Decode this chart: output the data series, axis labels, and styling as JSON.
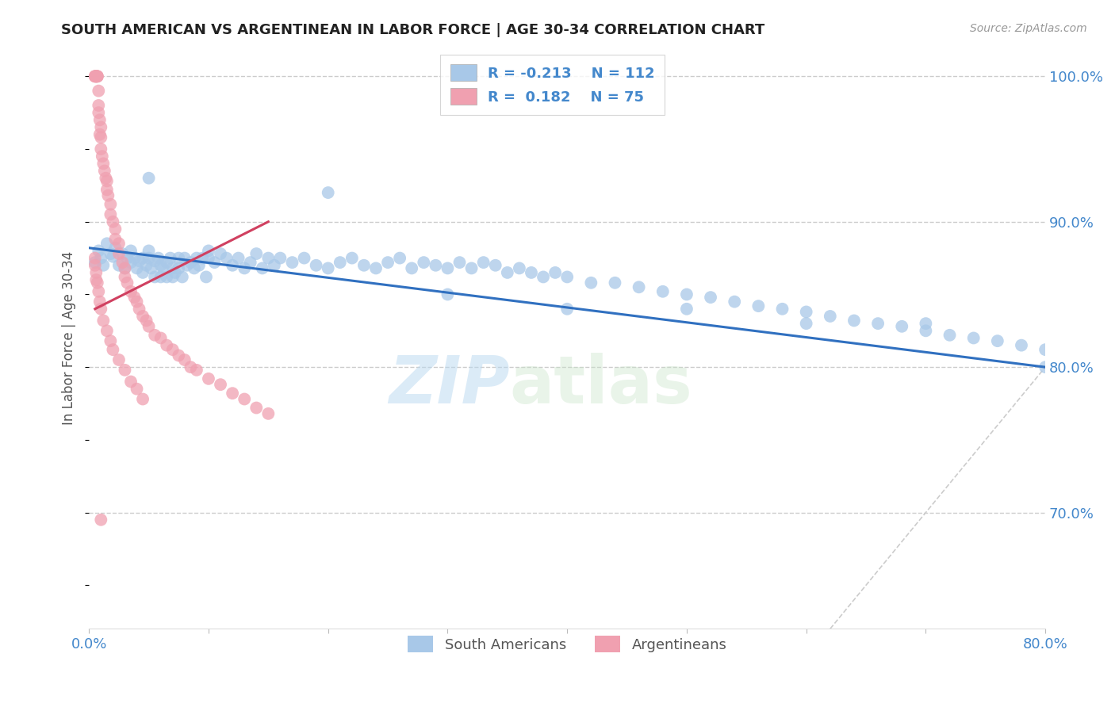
{
  "title": "SOUTH AMERICAN VS ARGENTINEAN IN LABOR FORCE | AGE 30-34 CORRELATION CHART",
  "source": "Source: ZipAtlas.com",
  "ylabel": "In Labor Force | Age 30-34",
  "xlim": [
    0.0,
    0.8
  ],
  "ylim": [
    0.62,
    1.02
  ],
  "xticks": [
    0.0,
    0.1,
    0.2,
    0.3,
    0.4,
    0.5,
    0.6,
    0.7,
    0.8
  ],
  "yticks_right": [
    0.7,
    0.8,
    0.9,
    1.0
  ],
  "yticklabels_right": [
    "70.0%",
    "80.0%",
    "90.0%",
    "100.0%"
  ],
  "blue_color": "#a8c8e8",
  "pink_color": "#f0a0b0",
  "blue_line_color": "#3070c0",
  "pink_line_color": "#d04060",
  "diagonal_color": "#cccccc",
  "legend_R_blue": "-0.213",
  "legend_N_blue": "112",
  "legend_R_pink": "0.182",
  "legend_N_pink": "75",
  "legend_label_blue": "South Americans",
  "legend_label_pink": "Argentineans",
  "watermark_zip": "ZIP",
  "watermark_atlas": "atlas",
  "blue_line_x0": 0.0,
  "blue_line_y0": 0.882,
  "blue_line_x1": 0.8,
  "blue_line_y1": 0.8,
  "pink_line_x0": 0.005,
  "pink_line_y0": 0.84,
  "pink_line_x1": 0.15,
  "pink_line_y1": 0.9,
  "blue_scatter_x": [
    0.005,
    0.008,
    0.01,
    0.012,
    0.015,
    0.018,
    0.02,
    0.022,
    0.025,
    0.028,
    0.03,
    0.032,
    0.035,
    0.035,
    0.038,
    0.04,
    0.042,
    0.045,
    0.045,
    0.048,
    0.05,
    0.05,
    0.052,
    0.055,
    0.055,
    0.058,
    0.06,
    0.06,
    0.062,
    0.065,
    0.065,
    0.068,
    0.07,
    0.07,
    0.072,
    0.075,
    0.075,
    0.078,
    0.08,
    0.082,
    0.085,
    0.088,
    0.09,
    0.092,
    0.095,
    0.098,
    0.1,
    0.105,
    0.11,
    0.115,
    0.12,
    0.125,
    0.13,
    0.135,
    0.14,
    0.145,
    0.15,
    0.155,
    0.16,
    0.17,
    0.18,
    0.19,
    0.2,
    0.21,
    0.22,
    0.23,
    0.24,
    0.25,
    0.26,
    0.27,
    0.28,
    0.29,
    0.3,
    0.31,
    0.32,
    0.33,
    0.34,
    0.35,
    0.36,
    0.37,
    0.38,
    0.39,
    0.4,
    0.42,
    0.44,
    0.46,
    0.48,
    0.5,
    0.52,
    0.54,
    0.56,
    0.58,
    0.6,
    0.62,
    0.64,
    0.66,
    0.68,
    0.7,
    0.72,
    0.74,
    0.76,
    0.78,
    0.8,
    0.05,
    0.1,
    0.2,
    0.3,
    0.4,
    0.5,
    0.6,
    0.7,
    0.8
  ],
  "blue_scatter_y": [
    0.872,
    0.88,
    0.875,
    0.87,
    0.885,
    0.878,
    0.876,
    0.882,
    0.87,
    0.878,
    0.868,
    0.875,
    0.88,
    0.872,
    0.875,
    0.868,
    0.873,
    0.875,
    0.865,
    0.87,
    0.88,
    0.875,
    0.868,
    0.873,
    0.862,
    0.875,
    0.87,
    0.862,
    0.868,
    0.872,
    0.862,
    0.875,
    0.868,
    0.862,
    0.865,
    0.875,
    0.868,
    0.862,
    0.875,
    0.87,
    0.872,
    0.868,
    0.875,
    0.87,
    0.875,
    0.862,
    0.875,
    0.872,
    0.878,
    0.875,
    0.87,
    0.875,
    0.868,
    0.872,
    0.878,
    0.868,
    0.875,
    0.87,
    0.875,
    0.872,
    0.875,
    0.87,
    0.868,
    0.872,
    0.875,
    0.87,
    0.868,
    0.872,
    0.875,
    0.868,
    0.872,
    0.87,
    0.868,
    0.872,
    0.868,
    0.872,
    0.87,
    0.865,
    0.868,
    0.865,
    0.862,
    0.865,
    0.862,
    0.858,
    0.858,
    0.855,
    0.852,
    0.85,
    0.848,
    0.845,
    0.842,
    0.84,
    0.838,
    0.835,
    0.832,
    0.83,
    0.828,
    0.825,
    0.822,
    0.82,
    0.818,
    0.815,
    0.812,
    0.93,
    0.88,
    0.92,
    0.85,
    0.84,
    0.84,
    0.83,
    0.83,
    0.8
  ],
  "pink_scatter_x": [
    0.005,
    0.005,
    0.005,
    0.006,
    0.006,
    0.006,
    0.006,
    0.007,
    0.007,
    0.007,
    0.008,
    0.008,
    0.008,
    0.009,
    0.009,
    0.01,
    0.01,
    0.01,
    0.011,
    0.012,
    0.013,
    0.014,
    0.015,
    0.015,
    0.016,
    0.018,
    0.018,
    0.02,
    0.022,
    0.022,
    0.025,
    0.025,
    0.028,
    0.03,
    0.03,
    0.032,
    0.035,
    0.038,
    0.04,
    0.042,
    0.045,
    0.048,
    0.05,
    0.055,
    0.06,
    0.065,
    0.07,
    0.075,
    0.08,
    0.085,
    0.09,
    0.1,
    0.11,
    0.12,
    0.13,
    0.14,
    0.15,
    0.005,
    0.005,
    0.006,
    0.006,
    0.007,
    0.008,
    0.009,
    0.01,
    0.012,
    0.015,
    0.018,
    0.02,
    0.025,
    0.03,
    0.035,
    0.04,
    0.045,
    0.01
  ],
  "pink_scatter_y": [
    1.0,
    1.0,
    1.0,
    1.0,
    1.0,
    1.0,
    1.0,
    1.0,
    1.0,
    1.0,
    0.99,
    0.98,
    0.975,
    0.97,
    0.96,
    0.965,
    0.958,
    0.95,
    0.945,
    0.94,
    0.935,
    0.93,
    0.928,
    0.922,
    0.918,
    0.912,
    0.905,
    0.9,
    0.895,
    0.888,
    0.885,
    0.878,
    0.872,
    0.868,
    0.862,
    0.858,
    0.852,
    0.848,
    0.845,
    0.84,
    0.835,
    0.832,
    0.828,
    0.822,
    0.82,
    0.815,
    0.812,
    0.808,
    0.805,
    0.8,
    0.798,
    0.792,
    0.788,
    0.782,
    0.778,
    0.772,
    0.768,
    0.875,
    0.87,
    0.865,
    0.86,
    0.858,
    0.852,
    0.845,
    0.84,
    0.832,
    0.825,
    0.818,
    0.812,
    0.805,
    0.798,
    0.79,
    0.785,
    0.778,
    0.695
  ]
}
